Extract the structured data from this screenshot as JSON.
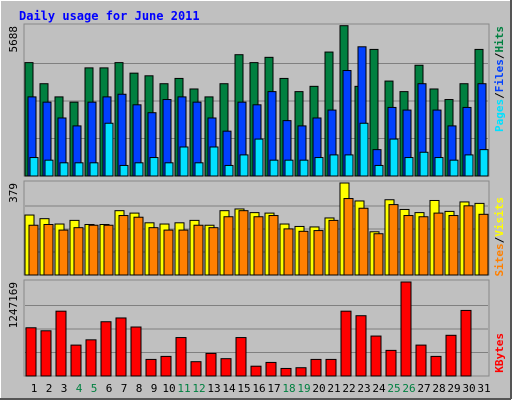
{
  "title": "Daily usage for June 2011",
  "colors": {
    "background": "#c0c0c0",
    "title": "#0000ff",
    "hits": "#008040",
    "files": "#0040ff",
    "pages": "#00e0ff",
    "visits": "#ffff00",
    "sites": "#ff8000",
    "kbytes": "#ff0000",
    "weekend_day_label": "#008040",
    "weekday_label": "#000000"
  },
  "legend": {
    "top": [
      "Pages",
      "/",
      "Files",
      "/",
      "Hits"
    ],
    "middle": [
      "Sites",
      "/",
      "Visits"
    ],
    "bottom": [
      "KBytes"
    ]
  },
  "chart_data": [
    {
      "type": "bar",
      "panel": "hits-files-pages",
      "y_max_label": "5688",
      "ylim": [
        0,
        5688
      ],
      "grid": true,
      "categories": [
        "1",
        "2",
        "3",
        "4",
        "5",
        "6",
        "7",
        "8",
        "9",
        "10",
        "11",
        "12",
        "13",
        "14",
        "15",
        "16",
        "17",
        "18",
        "19",
        "20",
        "21",
        "22",
        "23",
        "24",
        "25",
        "26",
        "27",
        "28",
        "29",
        "30",
        "31"
      ],
      "weekend_days": [
        "4",
        "5",
        "11",
        "12",
        "18",
        "19",
        "25",
        "26"
      ],
      "series": [
        {
          "name": "Hits",
          "values": [
            4300,
            3500,
            3000,
            2800,
            4100,
            4100,
            4300,
            3900,
            3800,
            3500,
            3700,
            3300,
            3000,
            3500,
            4600,
            4300,
            4500,
            3700,
            3200,
            3400,
            4700,
            5700,
            3400,
            4800,
            3600,
            3200,
            4200,
            3300,
            2900,
            3500,
            4800
          ]
        },
        {
          "name": "Files",
          "values": [
            3000,
            2800,
            2200,
            1900,
            2800,
            3000,
            3100,
            2700,
            2400,
            2900,
            3000,
            2800,
            2200,
            1700,
            2800,
            2700,
            3200,
            2100,
            1900,
            2200,
            2500,
            4000,
            4900,
            1000,
            2600,
            2500,
            3500,
            2500,
            1900,
            2600,
            3500
          ]
        },
        {
          "name": "Pages",
          "values": [
            700,
            600,
            500,
            500,
            500,
            2000,
            400,
            500,
            700,
            500,
            1100,
            500,
            1100,
            400,
            800,
            1400,
            600,
            600,
            600,
            700,
            800,
            800,
            2000,
            400,
            1400,
            700,
            900,
            700,
            600,
            800,
            1000
          ]
        }
      ]
    },
    {
      "type": "bar",
      "panel": "visits-sites",
      "y_max_label": "379",
      "ylim": [
        0,
        379
      ],
      "grid": true,
      "categories": [
        "1",
        "2",
        "3",
        "4",
        "5",
        "6",
        "7",
        "8",
        "9",
        "10",
        "11",
        "12",
        "13",
        "14",
        "15",
        "16",
        "17",
        "18",
        "19",
        "20",
        "21",
        "22",
        "23",
        "24",
        "25",
        "26",
        "27",
        "28",
        "29",
        "30",
        "31"
      ],
      "series": [
        {
          "name": "Visits",
          "values": [
            247,
            232,
            210,
            225,
            208,
            208,
            265,
            255,
            215,
            210,
            215,
            225,
            205,
            265,
            272,
            257,
            255,
            210,
            200,
            198,
            235,
            379,
            305,
            178,
            310,
            270,
            257,
            307,
            262,
            301,
            295
          ]
        },
        {
          "name": "Sites",
          "values": [
            205,
            208,
            185,
            195,
            205,
            205,
            245,
            238,
            195,
            185,
            185,
            205,
            195,
            240,
            265,
            240,
            245,
            190,
            180,
            183,
            225,
            315,
            275,
            170,
            290,
            245,
            240,
            255,
            245,
            285,
            250
          ]
        }
      ]
    },
    {
      "type": "bar",
      "panel": "kbytes",
      "y_max_label": "1247169",
      "ylim": [
        0,
        1247169
      ],
      "grid": true,
      "categories": [
        "1",
        "2",
        "3",
        "4",
        "5",
        "6",
        "7",
        "8",
        "9",
        "10",
        "11",
        "12",
        "13",
        "14",
        "15",
        "16",
        "17",
        "18",
        "19",
        "20",
        "21",
        "22",
        "23",
        "24",
        "25",
        "26",
        "27",
        "28",
        "29",
        "30",
        "31"
      ],
      "series": [
        {
          "name": "KBytes",
          "values": [
            640000,
            600000,
            860000,
            410000,
            480000,
            720000,
            770000,
            650000,
            220000,
            260000,
            510000,
            190000,
            300000,
            230000,
            510000,
            130000,
            180000,
            100000,
            110000,
            220000,
            220000,
            860000,
            800000,
            530000,
            340000,
            1247169,
            410000,
            260000,
            540000,
            870000,
            0
          ]
        }
      ]
    }
  ]
}
